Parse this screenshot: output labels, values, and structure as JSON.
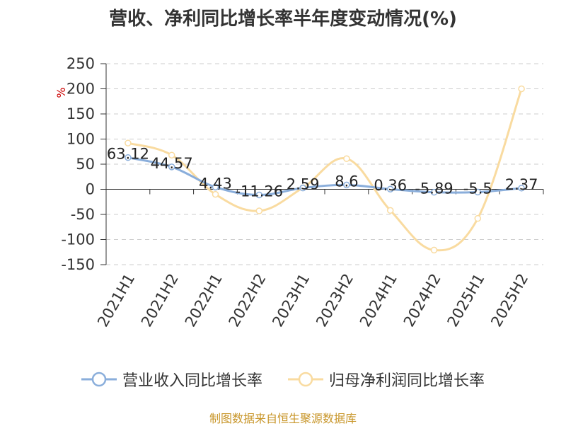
{
  "chart_data": {
    "type": "line",
    "title": "营收、净利同比增长率半年度变动情况(%)",
    "ylabel": "%",
    "categories": [
      "2021H1",
      "2021H2",
      "2022H1",
      "2022H2",
      "2023H1",
      "2023H2",
      "2024H1",
      "2024H2",
      "2025H1",
      "2025H2"
    ],
    "ylim": [
      -150,
      250
    ],
    "yticks": [
      250,
      200,
      150,
      100,
      50,
      0,
      -50,
      -100,
      -150
    ],
    "grid": true,
    "legend_position": "bottom",
    "series": [
      {
        "name": "营业收入同比增长率",
        "color": "#8aaedb",
        "values": [
          63.12,
          44.57,
          4.43,
          -11.26,
          2.59,
          8.6,
          0.36,
          -5.89,
          -5.5,
          2.37
        ],
        "labels": [
          "63.12",
          "44.57",
          "4.43",
          "-11.26",
          "2.59",
          "8.6",
          "0.36",
          "-5.89",
          "-5.5",
          "2.37"
        ]
      },
      {
        "name": "归母净利润同比增长率",
        "color": "#f9dba0",
        "values": [
          92,
          68,
          -10,
          -43,
          3,
          61,
          -42,
          -121,
          -58,
          200
        ]
      }
    ]
  },
  "footer": {
    "source": "制图数据来自恒生聚源数据库"
  }
}
